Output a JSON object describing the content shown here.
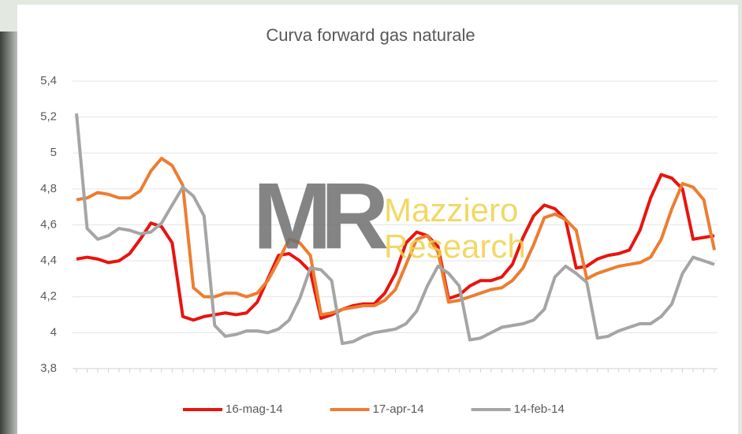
{
  "chart_data": {
    "type": "line",
    "title": "Curva forward gas naturale",
    "watermark": {
      "logo": "MR",
      "lines": [
        "Mazziero",
        "Research"
      ]
    },
    "categories": [
      null,
      null,
      null,
      null,
      null,
      null,
      null,
      null,
      null,
      null,
      null,
      null,
      null,
      null,
      null,
      null,
      null,
      null,
      null,
      null,
      null,
      null,
      null,
      null,
      null,
      null,
      null,
      null,
      null,
      null,
      null,
      null,
      null,
      null,
      null,
      null,
      null,
      null,
      null,
      null,
      null,
      null,
      null,
      null,
      null,
      null,
      null,
      null,
      null,
      null,
      null,
      null,
      null,
      null,
      null,
      null,
      null,
      null,
      null,
      null,
      null
    ],
    "series": [
      {
        "name": "16-mag-14",
        "color": "#e8140f",
        "values": [
          4.41,
          4.42,
          4.41,
          4.39,
          4.4,
          4.44,
          4.52,
          4.61,
          4.59,
          4.5,
          4.09,
          4.07,
          4.09,
          4.1,
          4.11,
          4.1,
          4.11,
          4.17,
          4.3,
          4.43,
          4.44,
          4.4,
          4.34,
          4.08,
          4.1,
          4.13,
          4.15,
          4.16,
          4.16,
          4.22,
          4.33,
          4.5,
          4.56,
          4.54,
          4.48,
          4.19,
          4.21,
          4.26,
          4.29,
          4.29,
          4.31,
          4.38,
          4.53,
          4.65,
          4.71,
          4.69,
          4.63,
          4.36,
          4.37,
          4.41,
          4.43,
          4.44,
          4.46,
          4.57,
          4.75,
          4.88,
          4.86,
          4.8,
          4.52,
          4.53,
          4.54
        ]
      },
      {
        "name": "17-apr-14",
        "color": "#ed7d31",
        "values": [
          4.74,
          4.75,
          4.78,
          4.77,
          4.75,
          4.75,
          4.79,
          4.9,
          4.97,
          4.93,
          4.82,
          4.25,
          4.2,
          4.2,
          4.22,
          4.22,
          4.2,
          4.22,
          4.29,
          4.4,
          4.52,
          4.5,
          4.43,
          4.1,
          4.11,
          4.13,
          4.14,
          4.15,
          4.15,
          4.18,
          4.24,
          4.38,
          4.52,
          4.54,
          4.45,
          4.17,
          4.18,
          4.2,
          4.22,
          4.24,
          4.25,
          4.29,
          4.36,
          4.49,
          4.64,
          4.66,
          4.63,
          4.57,
          4.3,
          4.33,
          4.35,
          4.37,
          4.38,
          4.39,
          4.42,
          4.52,
          4.69,
          4.83,
          4.81,
          4.74,
          4.46
        ]
      },
      {
        "name": "14-feb-14",
        "color": "#a5a5a5",
        "values": [
          5.22,
          4.58,
          4.52,
          4.54,
          4.58,
          4.57,
          4.55,
          4.56,
          4.61,
          4.71,
          4.81,
          4.76,
          4.65,
          4.04,
          3.98,
          3.99,
          4.01,
          4.01,
          4.0,
          4.02,
          4.07,
          4.19,
          4.36,
          4.35,
          4.29,
          3.94,
          3.95,
          3.98,
          4.0,
          4.01,
          4.02,
          4.05,
          4.12,
          4.26,
          4.37,
          4.33,
          4.26,
          3.96,
          3.97,
          4.0,
          4.03,
          4.04,
          4.05,
          4.07,
          4.13,
          4.31,
          4.37,
          4.33,
          4.28,
          3.97,
          3.98,
          4.01,
          4.03,
          4.05,
          4.05,
          4.09,
          4.16,
          4.33,
          4.42,
          4.4,
          4.38
        ]
      }
    ],
    "ylim": [
      3.8,
      5.4
    ],
    "yticks": [
      {
        "value": 3.8,
        "label": "3,8"
      },
      4,
      {
        "value": 4.2,
        "label": "4,2"
      },
      {
        "value": 4.4,
        "label": "4,4"
      },
      {
        "value": 4.6,
        "label": "4,6"
      },
      {
        "value": 4.8,
        "label": "4,8"
      },
      5,
      {
        "value": 5.2,
        "label": "5,2"
      },
      {
        "value": 5.4,
        "label": "5,4"
      }
    ],
    "grid": true,
    "legend": "bottom"
  }
}
